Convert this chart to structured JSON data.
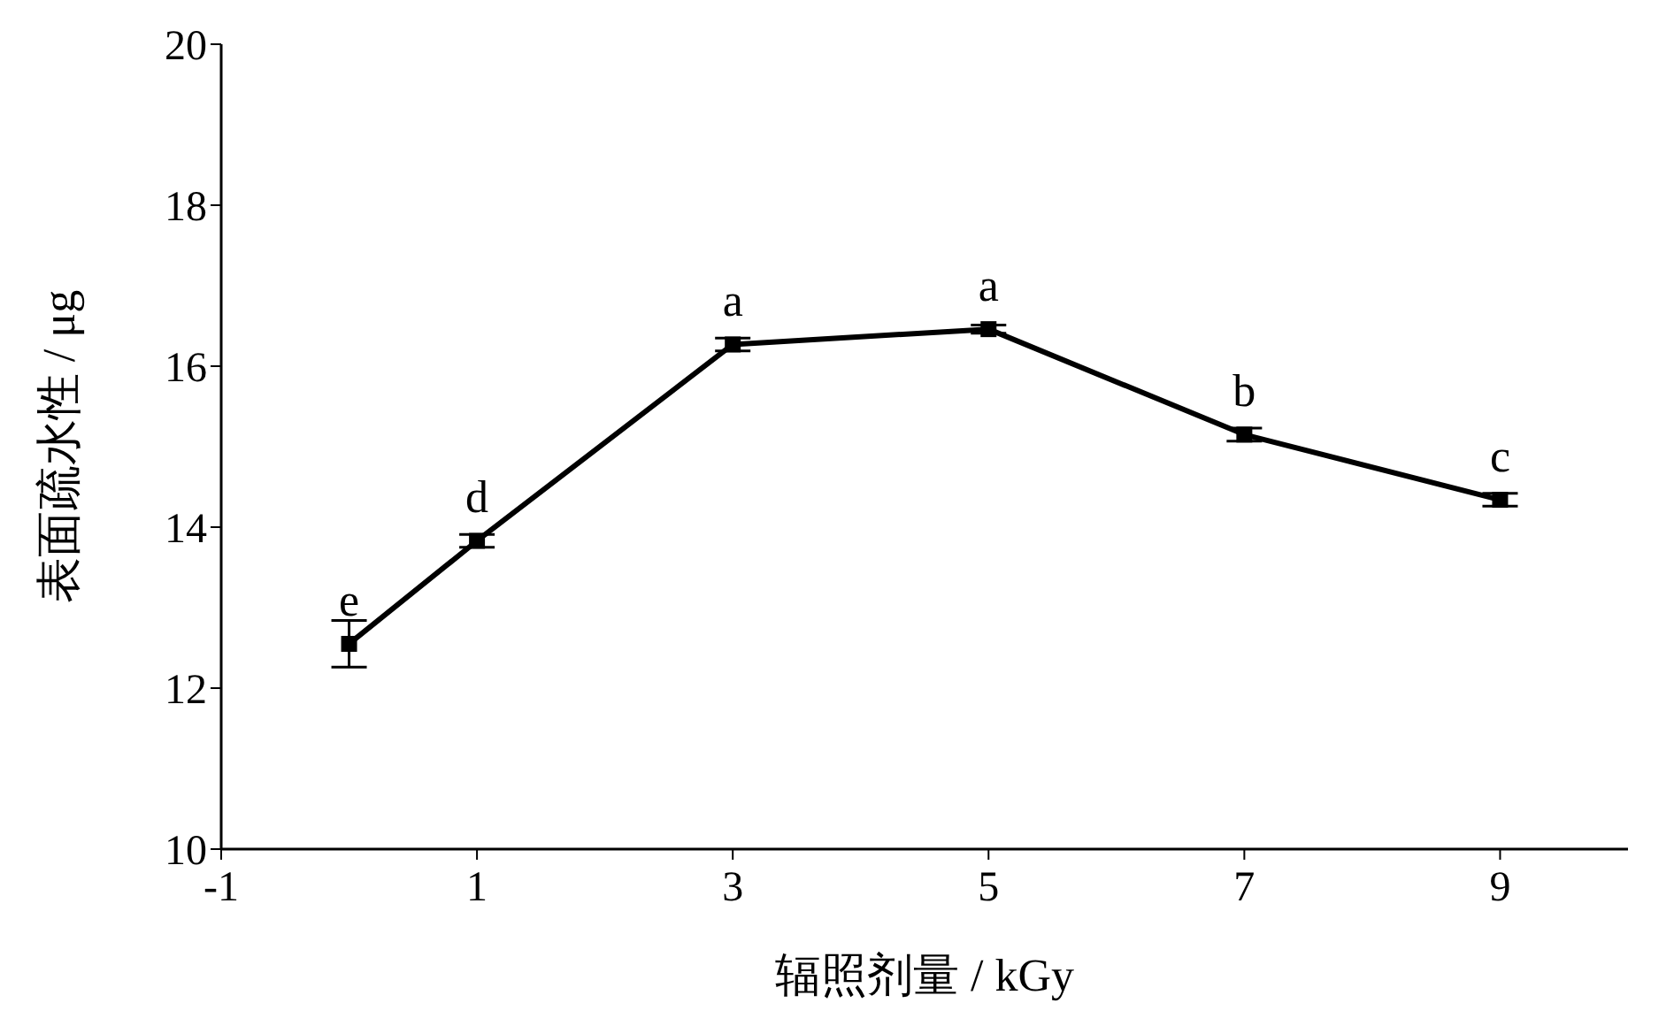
{
  "chart_data": {
    "type": "line",
    "xlabel": "辐照剂量 / kGy",
    "ylabel": "表面疏水性 / μg",
    "x": [
      0,
      1,
      3,
      5,
      7,
      9
    ],
    "series": [
      {
        "color": "#000000",
        "values": [
          12.55,
          13.83,
          16.27,
          16.46,
          15.15,
          14.34
        ],
        "errors": [
          0.29,
          0.08,
          0.08,
          0.05,
          0.08,
          0.08
        ]
      }
    ],
    "xlim": [
      -1,
      10
    ],
    "xticks": [
      -1,
      1,
      3,
      5,
      7,
      9
    ],
    "ylim": [
      10,
      20
    ],
    "yticks": [
      10,
      12,
      14,
      16,
      18,
      20
    ],
    "marker": "square",
    "line_style": "solid",
    "grid": false,
    "legend": false,
    "annotations": [
      {
        "text": "e",
        "x": 0,
        "y": 12.55
      },
      {
        "text": "d",
        "x": 1,
        "y": 13.83
      },
      {
        "text": "a",
        "x": 3,
        "y": 16.27
      },
      {
        "text": "a",
        "x": 5,
        "y": 16.46
      },
      {
        "text": "b",
        "x": 7,
        "y": 15.15
      },
      {
        "text": "c",
        "x": 9,
        "y": 14.34
      }
    ]
  }
}
